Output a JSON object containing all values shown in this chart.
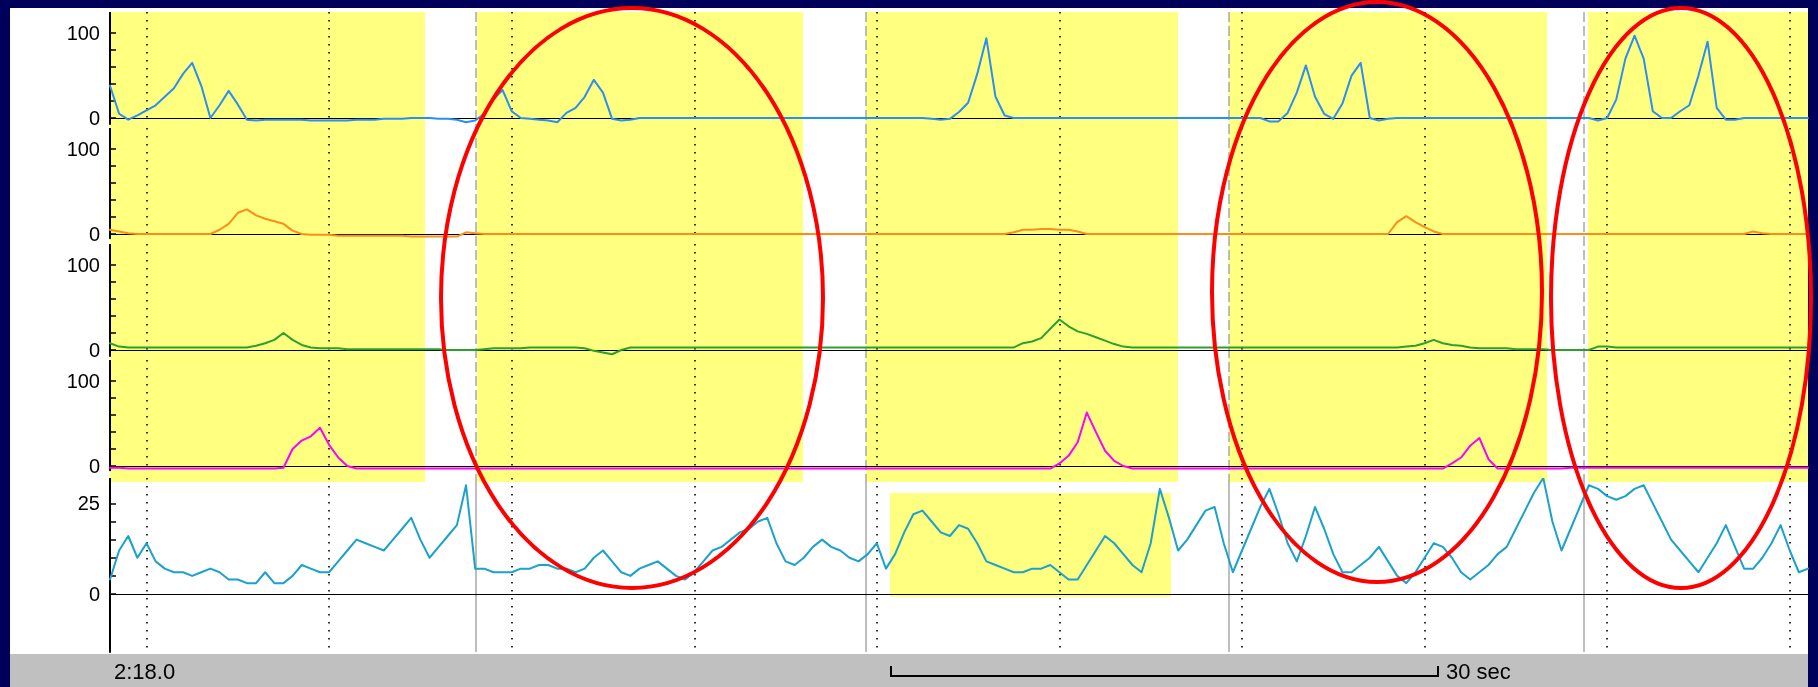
{
  "chart_data": [
    {
      "type": "line",
      "categories": [
        null,
        null,
        null,
        null,
        null,
        null,
        null,
        null,
        null,
        null,
        null,
        null,
        null,
        null,
        null,
        null,
        null,
        null,
        null,
        null,
        null,
        null,
        null,
        null,
        null,
        null,
        null,
        null,
        null,
        null,
        null,
        null,
        null,
        null,
        null,
        null,
        null,
        null,
        null,
        null,
        null,
        null,
        null,
        null,
        null,
        null,
        null,
        null,
        null,
        null,
        null,
        null,
        null,
        null,
        null,
        null,
        null,
        null,
        null,
        null,
        null,
        null,
        null,
        null,
        null,
        null,
        null,
        null,
        null,
        null,
        null,
        null,
        null,
        null,
        null,
        null,
        null,
        null,
        null,
        null,
        null,
        null,
        null,
        null,
        null,
        null,
        null,
        null,
        null,
        null,
        null,
        null,
        null,
        null,
        null,
        null,
        null,
        null,
        null,
        null,
        null,
        null,
        null,
        null,
        null,
        null,
        null,
        null,
        null,
        null,
        null,
        null,
        null,
        null,
        null,
        null,
        null,
        null,
        null,
        null,
        null,
        null,
        null,
        null,
        null,
        null,
        null,
        null,
        null,
        null,
        null,
        null,
        null,
        null,
        null,
        null,
        null,
        null,
        null,
        null,
        null,
        null,
        null,
        null,
        null,
        null,
        null,
        null,
        null,
        null,
        null,
        null,
        null,
        null,
        null,
        null,
        null,
        null,
        null,
        null,
        null,
        null,
        null,
        null,
        null,
        null,
        null,
        null,
        null,
        null,
        null,
        null,
        null,
        null,
        null,
        null,
        null,
        null,
        null,
        null,
        null,
        null,
        null,
        null,
        null,
        null,
        null
      ],
      "ylim": [
        -7,
        125
      ],
      "yticks": [
        0,
        {
          "value": 20,
          "label": null
        },
        {
          "value": 40,
          "label": null
        },
        {
          "value": 60,
          "label": null
        },
        {
          "value": 80,
          "label": null
        },
        100
      ],
      "tick_labels": "y",
      "grid": "x",
      "marker": "none",
      "line_style": "solid",
      "series": [
        {
          "color": "#2a8ff0",
          "values": [
            38,
            5,
            -2,
            3,
            9,
            15,
            25,
            35,
            52,
            65,
            38,
            0,
            15,
            32,
            16,
            -2,
            -3,
            -2,
            -2,
            -2,
            -2,
            -2,
            -3,
            -3,
            -3,
            -3,
            -3,
            -2,
            -2,
            -2,
            -1,
            -1,
            -1,
            0,
            0,
            0,
            -1,
            -1,
            -2,
            -5,
            -3,
            5,
            22,
            33,
            8,
            0,
            -1,
            -2,
            -3,
            -5,
            6,
            12,
            25,
            45,
            30,
            -1,
            -3,
            -2,
            0,
            0,
            0,
            0,
            0,
            0,
            0,
            0,
            0,
            0,
            0,
            0,
            0,
            0,
            0,
            0,
            0,
            0,
            0,
            0,
            0,
            0,
            0,
            0,
            0,
            0,
            0,
            0,
            0,
            0,
            0,
            0,
            -1,
            -2,
            -1,
            7,
            18,
            52,
            94,
            25,
            3,
            0,
            0,
            0,
            0,
            0,
            0,
            0,
            0,
            0,
            0,
            0,
            0,
            0,
            0,
            0,
            0,
            0,
            0,
            0,
            0,
            0,
            0,
            0,
            0,
            0,
            0,
            0,
            0,
            -4,
            -4,
            6,
            30,
            62,
            25,
            5,
            -1,
            17,
            50,
            65,
            0,
            -3,
            -1,
            0,
            0,
            0,
            0,
            0,
            0,
            0,
            0,
            0,
            0,
            0,
            0,
            0,
            0,
            0,
            0,
            0,
            0,
            0,
            0,
            0,
            0,
            -3,
            0,
            22,
            70,
            97,
            70,
            8,
            0,
            0,
            8,
            15,
            50,
            90,
            12,
            -2,
            -2,
            0,
            0,
            0,
            0,
            0,
            0,
            0,
            0
          ]
        }
      ]
    },
    {
      "type": "line",
      "categories": [
        null,
        null,
        null,
        null,
        null,
        null,
        null,
        null,
        null,
        null,
        null,
        null,
        null,
        null,
        null,
        null,
        null,
        null,
        null,
        null,
        null,
        null,
        null,
        null,
        null,
        null,
        null,
        null,
        null,
        null,
        null,
        null,
        null,
        null,
        null,
        null,
        null,
        null,
        null,
        null,
        null,
        null,
        null,
        null,
        null,
        null,
        null,
        null,
        null,
        null,
        null,
        null,
        null,
        null,
        null,
        null,
        null,
        null,
        null,
        null,
        null,
        null,
        null,
        null,
        null,
        null,
        null,
        null,
        null,
        null,
        null,
        null,
        null,
        null,
        null,
        null,
        null,
        null,
        null,
        null,
        null,
        null,
        null,
        null,
        null,
        null,
        null,
        null,
        null,
        null,
        null,
        null,
        null,
        null,
        null,
        null,
        null,
        null,
        null,
        null,
        null,
        null,
        null,
        null,
        null,
        null,
        null,
        null,
        null,
        null,
        null,
        null,
        null,
        null,
        null,
        null,
        null,
        null,
        null,
        null,
        null,
        null,
        null,
        null,
        null,
        null,
        null,
        null,
        null,
        null,
        null,
        null,
        null,
        null,
        null,
        null,
        null,
        null,
        null,
        null,
        null,
        null,
        null,
        null,
        null,
        null,
        null,
        null,
        null,
        null,
        null,
        null,
        null,
        null,
        null,
        null,
        null,
        null,
        null,
        null,
        null,
        null,
        null,
        null,
        null,
        null,
        null,
        null,
        null,
        null,
        null,
        null,
        null,
        null,
        null,
        null,
        null,
        null,
        null,
        null,
        null,
        null,
        null,
        null,
        null,
        null,
        null
      ],
      "ylim": [
        -5,
        125
      ],
      "yticks": [
        0,
        {
          "value": 20,
          "label": null
        },
        {
          "value": 40,
          "label": null
        },
        {
          "value": 60,
          "label": null
        },
        {
          "value": 80,
          "label": null
        },
        100
      ],
      "tick_labels": "y",
      "grid": "x",
      "marker": "none",
      "line_style": "solid",
      "series": [
        {
          "color": "#ff8c1a",
          "values": [
            5,
            3,
            1,
            0,
            0,
            0,
            0,
            0,
            0,
            0,
            0,
            0,
            5,
            12,
            25,
            29,
            22,
            18,
            15,
            12,
            4,
            0,
            -1,
            -1,
            -1,
            -2,
            -2,
            -2,
            -2,
            -2,
            -2,
            -2,
            -2,
            -3,
            -3,
            -3,
            -3,
            -3,
            -3,
            2,
            1,
            0,
            0,
            0,
            0,
            0,
            0,
            0,
            0,
            0,
            0,
            0,
            0,
            0,
            0,
            0,
            0,
            0,
            0,
            0,
            0,
            0,
            0,
            0,
            0,
            0,
            0,
            0,
            0,
            0,
            0,
            0,
            0,
            0,
            0,
            0,
            0,
            0,
            0,
            0,
            0,
            0,
            0,
            0,
            0,
            0,
            0,
            0,
            0,
            0,
            0,
            0,
            0,
            0,
            0,
            0,
            0,
            0,
            0,
            2,
            5,
            5,
            6,
            6,
            5,
            5,
            3,
            0,
            0,
            0,
            0,
            0,
            0,
            0,
            0,
            0,
            0,
            0,
            0,
            0,
            0,
            0,
            0,
            0,
            0,
            0,
            0,
            0,
            0,
            0,
            0,
            0,
            0,
            0,
            0,
            0,
            0,
            0,
            0,
            0,
            0,
            14,
            21,
            14,
            8,
            3,
            0,
            0,
            0,
            0,
            0,
            0,
            0,
            0,
            0,
            0,
            0,
            0,
            0,
            0,
            0,
            0,
            0,
            0,
            0,
            0,
            0,
            0,
            0,
            0,
            0,
            0,
            0,
            0,
            0,
            0,
            0,
            0,
            0,
            0,
            3,
            1,
            0,
            0,
            0,
            0,
            0
          ]
        }
      ]
    },
    {
      "type": "line",
      "categories": [
        null,
        null,
        null,
        null,
        null,
        null,
        null,
        null,
        null,
        null,
        null,
        null,
        null,
        null,
        null,
        null,
        null,
        null,
        null,
        null,
        null,
        null,
        null,
        null,
        null,
        null,
        null,
        null,
        null,
        null,
        null,
        null,
        null,
        null,
        null,
        null,
        null,
        null,
        null,
        null,
        null,
        null,
        null,
        null,
        null,
        null,
        null,
        null,
        null,
        null,
        null,
        null,
        null,
        null,
        null,
        null,
        null,
        null,
        null,
        null,
        null,
        null,
        null,
        null,
        null,
        null,
        null,
        null,
        null,
        null,
        null,
        null,
        null,
        null,
        null,
        null,
        null,
        null,
        null,
        null,
        null,
        null,
        null,
        null,
        null,
        null,
        null,
        null,
        null,
        null,
        null,
        null,
        null,
        null,
        null,
        null,
        null,
        null,
        null,
        null,
        null,
        null,
        null,
        null,
        null,
        null,
        null,
        null,
        null,
        null,
        null,
        null,
        null,
        null,
        null,
        null,
        null,
        null,
        null,
        null,
        null,
        null,
        null,
        null,
        null,
        null,
        null,
        null,
        null,
        null,
        null,
        null,
        null,
        null,
        null,
        null,
        null,
        null,
        null,
        null,
        null,
        null,
        null,
        null,
        null,
        null,
        null,
        null,
        null,
        null,
        null,
        null,
        null,
        null,
        null,
        null,
        null,
        null,
        null,
        null,
        null,
        null,
        null,
        null,
        null,
        null,
        null,
        null,
        null,
        null,
        null,
        null,
        null,
        null,
        null,
        null,
        null,
        null,
        null,
        null,
        null,
        null,
        null,
        null,
        null,
        null,
        null
      ],
      "ylim": [
        -7,
        125
      ],
      "yticks": [
        0,
        {
          "value": 20,
          "label": null
        },
        {
          "value": 40,
          "label": null
        },
        {
          "value": 60,
          "label": null
        },
        {
          "value": 80,
          "label": null
        },
        100
      ],
      "tick_labels": "y",
      "grid": "x",
      "marker": "none",
      "line_style": "solid",
      "series": [
        {
          "color": "#2ca02c",
          "values": [
            8,
            4,
            3,
            3,
            3,
            3,
            3,
            3,
            3,
            3,
            3,
            3,
            3,
            3,
            3,
            3,
            5,
            8,
            12,
            20,
            12,
            6,
            3,
            2,
            2,
            2,
            1,
            1,
            1,
            1,
            1,
            1,
            1,
            1,
            1,
            1,
            1,
            0,
            0,
            0,
            0,
            1,
            2,
            2,
            2,
            2,
            3,
            3,
            3,
            3,
            3,
            3,
            2,
            -1,
            -3,
            -5,
            0,
            3,
            3,
            3,
            3,
            3,
            3,
            3,
            3,
            3,
            3,
            3,
            3,
            3,
            3,
            3,
            3,
            3,
            3,
            3,
            3,
            3,
            3,
            3,
            3,
            3,
            3,
            3,
            3,
            3,
            3,
            3,
            3,
            3,
            3,
            3,
            3,
            3,
            3,
            3,
            3,
            3,
            3,
            3,
            8,
            10,
            14,
            25,
            36,
            28,
            22,
            19,
            15,
            11,
            7,
            4,
            3,
            3,
            3,
            3,
            3,
            3,
            3,
            3,
            3,
            3,
            3,
            3,
            3,
            3,
            3,
            3,
            3,
            3,
            3,
            3,
            3,
            3,
            3,
            3,
            3,
            3,
            3,
            3,
            3,
            3,
            4,
            5,
            8,
            12,
            8,
            6,
            5,
            3,
            2,
            2,
            2,
            2,
            1,
            1,
            1,
            1,
            0,
            0,
            0,
            0,
            0,
            4,
            4,
            3,
            3,
            3,
            3,
            3,
            3,
            3,
            3,
            3,
            3,
            3,
            3,
            3,
            3,
            3,
            3,
            3,
            3,
            3,
            3,
            3,
            3
          ]
        }
      ]
    },
    {
      "type": "line",
      "categories": [
        null,
        null,
        null,
        null,
        null,
        null,
        null,
        null,
        null,
        null,
        null,
        null,
        null,
        null,
        null,
        null,
        null,
        null,
        null,
        null,
        null,
        null,
        null,
        null,
        null,
        null,
        null,
        null,
        null,
        null,
        null,
        null,
        null,
        null,
        null,
        null,
        null,
        null,
        null,
        null,
        null,
        null,
        null,
        null,
        null,
        null,
        null,
        null,
        null,
        null,
        null,
        null,
        null,
        null,
        null,
        null,
        null,
        null,
        null,
        null,
        null,
        null,
        null,
        null,
        null,
        null,
        null,
        null,
        null,
        null,
        null,
        null,
        null,
        null,
        null,
        null,
        null,
        null,
        null,
        null,
        null,
        null,
        null,
        null,
        null,
        null,
        null,
        null,
        null,
        null,
        null,
        null,
        null,
        null,
        null,
        null,
        null,
        null,
        null,
        null,
        null,
        null,
        null,
        null,
        null,
        null,
        null,
        null,
        null,
        null,
        null,
        null,
        null,
        null,
        null,
        null,
        null,
        null,
        null,
        null,
        null,
        null,
        null,
        null,
        null,
        null,
        null,
        null,
        null,
        null,
        null,
        null,
        null,
        null,
        null,
        null,
        null,
        null,
        null,
        null,
        null,
        null,
        null,
        null,
        null,
        null,
        null,
        null,
        null,
        null,
        null,
        null,
        null,
        null,
        null,
        null,
        null,
        null,
        null,
        null,
        null,
        null,
        null,
        null,
        null,
        null,
        null,
        null,
        null,
        null,
        null,
        null,
        null,
        null,
        null,
        null,
        null,
        null,
        null,
        null,
        null,
        null,
        null,
        null,
        null,
        null,
        null
      ],
      "ylim": [
        -5,
        125
      ],
      "yticks": [
        0,
        {
          "value": 20,
          "label": null
        },
        {
          "value": 40,
          "label": null
        },
        {
          "value": 60,
          "label": null
        },
        {
          "value": 80,
          "label": null
        },
        100
      ],
      "tick_labels": "y",
      "grid": "x",
      "marker": "none",
      "line_style": "solid",
      "series": [
        {
          "color": "#ff00ff",
          "values": [
            -2,
            -2,
            -3,
            -3,
            -3,
            -3,
            -3,
            -3,
            -3,
            -3,
            -3,
            -3,
            -3,
            -3,
            -3,
            -3,
            -3,
            -3,
            -3,
            -2,
            20,
            30,
            35,
            45,
            25,
            10,
            0,
            -3,
            -3,
            -3,
            -3,
            -3,
            -3,
            -3,
            -3,
            -3,
            -3,
            -3,
            -3,
            -3,
            -3,
            -3,
            -3,
            -3,
            -3,
            -3,
            -3,
            -3,
            -3,
            -3,
            -3,
            -3,
            -3,
            -3,
            -3,
            -3,
            -3,
            -3,
            -3,
            -3,
            -3,
            -3,
            -3,
            -3,
            -3,
            -3,
            -3,
            -3,
            -3,
            -3,
            -3,
            -3,
            -3,
            -3,
            -3,
            -3,
            -3,
            -3,
            -3,
            -3,
            -3,
            -3,
            -3,
            -3,
            -3,
            -3,
            -3,
            -3,
            -3,
            -3,
            -3,
            -3,
            -3,
            -3,
            -3,
            -3,
            -3,
            -3,
            -3,
            -3,
            -3,
            -3,
            -3,
            -3,
            3,
            12,
            28,
            63,
            40,
            18,
            6,
            0,
            -3,
            -3,
            -3,
            -3,
            -3,
            -3,
            -3,
            -3,
            -3,
            -3,
            -3,
            -3,
            -3,
            -3,
            -3,
            -3,
            -3,
            -3,
            -3,
            -3,
            -3,
            -3,
            -3,
            -3,
            -3,
            -3,
            -3,
            -3,
            -3,
            -3,
            -3,
            -3,
            -3,
            -3,
            -3,
            3,
            10,
            24,
            33,
            8,
            -3,
            -3,
            -3,
            -3,
            -3,
            -3,
            -3,
            -3,
            -2,
            -2,
            -2,
            -2,
            -2,
            -2,
            -2,
            -2,
            -2,
            -2,
            -2,
            -2,
            -2,
            -2,
            -2,
            -2,
            -2,
            -2,
            -2,
            -2,
            -2,
            -2,
            -2,
            -2,
            -2,
            -2,
            -2
          ]
        }
      ]
    },
    {
      "type": "line",
      "categories": [
        null,
        null,
        null,
        null,
        null,
        null,
        null,
        null,
        null,
        null,
        null,
        null,
        null,
        null,
        null,
        null,
        null,
        null,
        null,
        null,
        null,
        null,
        null,
        null,
        null,
        null,
        null,
        null,
        null,
        null,
        null,
        null,
        null,
        null,
        null,
        null,
        null,
        null,
        null,
        null,
        null,
        null,
        null,
        null,
        null,
        null,
        null,
        null,
        null,
        null,
        null,
        null,
        null,
        null,
        null,
        null,
        null,
        null,
        null,
        null,
        null,
        null,
        null,
        null,
        null,
        null,
        null,
        null,
        null,
        null,
        null,
        null,
        null,
        null,
        null,
        null,
        null,
        null,
        null,
        null,
        null,
        null,
        null,
        null,
        null,
        null,
        null,
        null,
        null,
        null,
        null,
        null,
        null,
        null,
        null,
        null,
        null,
        null,
        null,
        null,
        null,
        null,
        null,
        null,
        null,
        null,
        null,
        null,
        null,
        null,
        null,
        null,
        null,
        null,
        null,
        null,
        null,
        null,
        null,
        null,
        null,
        null,
        null,
        null,
        null,
        null,
        null,
        null,
        null,
        null,
        null,
        null,
        null,
        null,
        null,
        null,
        null,
        null,
        null,
        null,
        null,
        null,
        null,
        null,
        null,
        null,
        null,
        null,
        null,
        null,
        null,
        null,
        null,
        null,
        null,
        null,
        null,
        null,
        null,
        null,
        null,
        null,
        null,
        null,
        null,
        null,
        null,
        null,
        null,
        null,
        null,
        null,
        null,
        null,
        null,
        null,
        null,
        null,
        null,
        null,
        null,
        null,
        null,
        null,
        null,
        null,
        null
      ],
      "ylim": [
        -16,
        32
      ],
      "yticks": [
        0,
        {
          "value": 5,
          "label": null
        },
        {
          "value": 10,
          "label": null
        },
        {
          "value": 15,
          "label": null
        },
        {
          "value": 20,
          "label": null
        },
        25
      ],
      "tick_labels": "y",
      "grid": "x",
      "marker": "none",
      "line_style": "solid",
      "annotations": [
        "2:18.0",
        "30 sec"
      ],
      "series": [
        {
          "color": "#1ba1cc",
          "values": [
            4,
            12,
            16,
            10,
            14,
            9,
            7,
            6,
            6,
            5,
            6,
            7,
            6,
            4,
            4,
            3,
            3,
            6,
            3,
            3,
            5,
            8,
            7,
            6,
            6,
            9,
            12,
            15,
            14,
            13,
            12,
            15,
            18,
            21,
            15,
            10,
            13,
            16,
            19,
            30,
            7,
            7,
            6,
            6,
            6,
            7,
            7,
            8,
            8,
            7,
            7,
            6,
            7,
            10,
            12,
            9,
            6,
            5,
            7,
            8,
            9,
            7,
            5,
            4,
            6,
            9,
            12,
            13,
            15,
            17,
            18,
            20,
            21,
            14,
            9,
            8,
            10,
            13,
            15,
            13,
            12,
            10,
            9,
            11,
            14,
            7,
            11,
            17,
            22,
            23,
            20,
            17,
            16,
            19,
            18,
            14,
            9,
            8,
            7,
            6,
            6,
            7,
            7,
            8,
            6,
            4,
            4,
            8,
            12,
            16,
            14,
            11,
            8,
            6,
            14,
            29,
            21,
            12,
            15,
            19,
            23,
            24,
            14,
            6,
            12,
            18,
            24,
            29,
            22,
            14,
            9,
            16,
            24,
            18,
            11,
            6,
            6,
            8,
            10,
            13,
            9,
            5,
            3,
            6,
            10,
            14,
            13,
            10,
            6,
            4,
            6,
            8,
            11,
            13,
            18,
            23,
            28,
            32,
            20,
            12,
            18,
            24,
            30,
            29,
            27,
            26,
            27,
            29,
            30,
            25,
            20,
            15,
            12,
            9,
            6,
            10,
            14,
            19,
            13,
            7,
            7,
            10,
            14,
            19,
            12,
            6,
            7
          ]
        }
      ]
    }
  ]
}
